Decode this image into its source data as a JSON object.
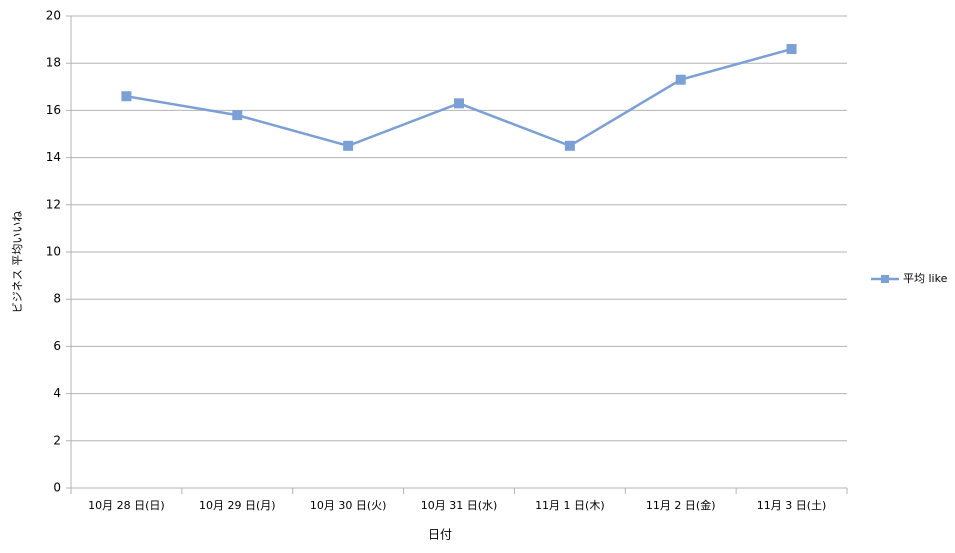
{
  "chart_data": {
    "type": "line",
    "x_label": "日付",
    "y_label": "ビジネス 平均いいね",
    "categories": [
      "10月 28 日(日)",
      "10月 29 日(月)",
      "10月 30 日(火)",
      "10月 31 日(水)",
      "11月 1 日(木)",
      "11月 2 日(金)",
      "11月 3 日(土)"
    ],
    "series": [
      {
        "name": "平均 like",
        "color": "#7ba0d5",
        "values": [
          16.6,
          15.8,
          14.5,
          16.3,
          14.5,
          17.3,
          18.6
        ]
      }
    ],
    "ylim": [
      0,
      20
    ],
    "yticks": [
      0,
      2,
      4,
      6,
      8,
      10,
      12,
      14,
      16,
      18,
      20
    ],
    "grid": true,
    "legend": "right"
  }
}
